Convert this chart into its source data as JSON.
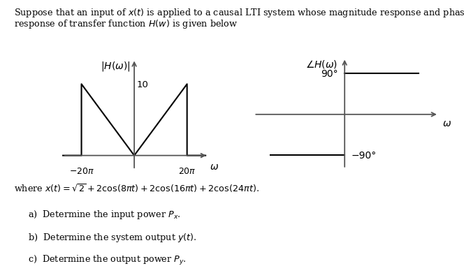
{
  "mag_ylabel": "$|H(\\omega)|$",
  "mag_y10_label": "10",
  "mag_xleft_label": "$-20\\pi$",
  "mag_xright_label": "$20\\pi$",
  "mag_omega_label": "$\\omega$",
  "phase_ylabel": "$\\angle H(\\omega)$",
  "phase_90_label": "90°",
  "phase_neg90_label": "−90°",
  "phase_omega_label": "$\\omega$",
  "header_line1": "Suppose that an input of $x(t)$ is applied to a causal LTI system whose magnitude response and phase",
  "header_line2": "response of transfer function $H(w)$ is given below",
  "body_text": "where $x(t) = \\sqrt{2}+2\\cos(8\\pi t)+2\\cos(16\\pi t)+2\\cos(24\\pi t)$.",
  "item_a": "a)  Determine the input power $P_x$.",
  "item_b": "b)  Determine the system output $y(t)$.",
  "item_c": "c)  Determine the output power $P_y$.",
  "bg_color": "#ffffff",
  "line_color": "#000000",
  "text_color": "#000000",
  "axis_color": "#555555"
}
